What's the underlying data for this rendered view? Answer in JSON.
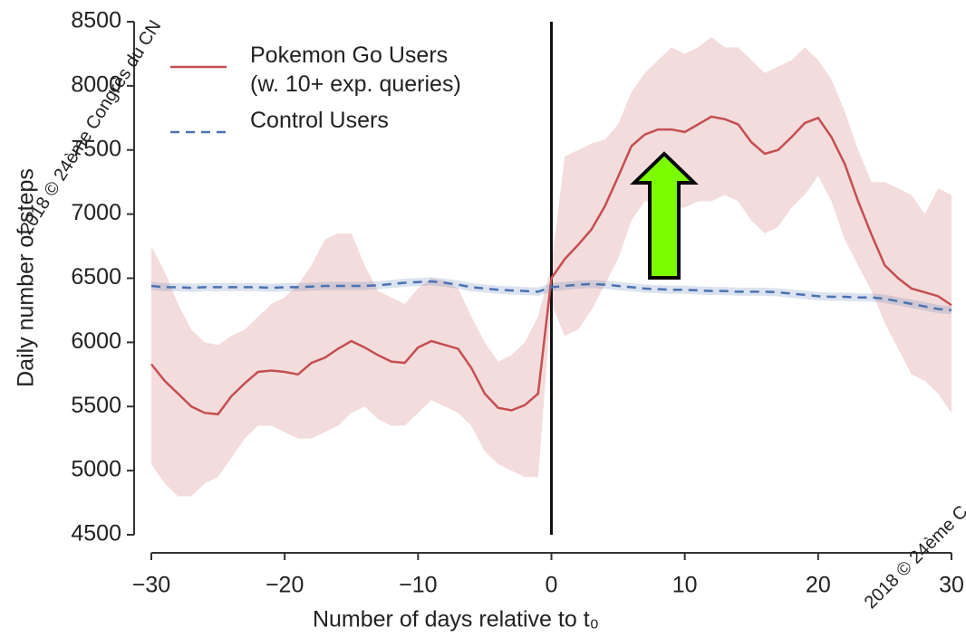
{
  "chart_data": {
    "type": "line",
    "xlabel": "Number of days relative to t₀",
    "ylabel": "Daily number of steps",
    "x": [
      -30,
      -29,
      -28,
      -27,
      -26,
      -25,
      -24,
      -23,
      -22,
      -21,
      -20,
      -19,
      -18,
      -17,
      -16,
      -15,
      -14,
      -13,
      -12,
      -11,
      -10,
      -9,
      -8,
      -7,
      -6,
      -5,
      -4,
      -3,
      -2,
      -1,
      0,
      1,
      2,
      3,
      4,
      5,
      6,
      7,
      8,
      9,
      10,
      11,
      12,
      13,
      14,
      15,
      16,
      17,
      18,
      19,
      20,
      21,
      22,
      23,
      24,
      25,
      26,
      27,
      28,
      29,
      30
    ],
    "series": [
      {
        "name": "Pokemon Go Users\n(w. 10+ exp. queries)",
        "color": "#c44e52",
        "values": [
          5830,
          5700,
          5600,
          5500,
          5450,
          5440,
          5580,
          5680,
          5770,
          5780,
          5770,
          5750,
          5840,
          5880,
          5950,
          6010,
          5960,
          5900,
          5850,
          5840,
          5960,
          6010,
          5980,
          5950,
          5800,
          5600,
          5490,
          5470,
          5510,
          5600,
          6500,
          6650,
          6760,
          6880,
          7060,
          7290,
          7530,
          7620,
          7660,
          7660,
          7640,
          7700,
          7760,
          7740,
          7700,
          7560,
          7470,
          7500,
          7600,
          7710,
          7750,
          7600,
          7390,
          7100,
          6840,
          6600,
          6500,
          6420,
          6390,
          6360,
          6290
        ],
        "upper": [
          6750,
          6550,
          6300,
          6100,
          6000,
          5980,
          6050,
          6100,
          6200,
          6300,
          6350,
          6450,
          6600,
          6800,
          6850,
          6850,
          6600,
          6400,
          6350,
          6300,
          6420,
          6500,
          6480,
          6420,
          6200,
          6000,
          5850,
          5900,
          6000,
          6200,
          6600,
          7450,
          7500,
          7550,
          7580,
          7700,
          7950,
          8100,
          8200,
          8300,
          8250,
          8300,
          8380,
          8300,
          8300,
          8200,
          8100,
          8150,
          8200,
          8300,
          8200,
          8050,
          7800,
          7500,
          7250,
          7250,
          7200,
          7150,
          7000,
          7200,
          7150
        ],
        "lower": [
          5050,
          4900,
          4800,
          4800,
          4900,
          4950,
          5100,
          5250,
          5350,
          5350,
          5300,
          5250,
          5250,
          5300,
          5350,
          5450,
          5500,
          5400,
          5350,
          5350,
          5450,
          5550,
          5500,
          5450,
          5350,
          5150,
          5050,
          5000,
          4950,
          4950,
          6300,
          6050,
          6100,
          6250,
          6450,
          6650,
          6950,
          7100,
          7100,
          7050,
          7050,
          7100,
          7100,
          7150,
          7100,
          6950,
          6850,
          6900,
          7050,
          7150,
          7300,
          7100,
          6800,
          6600,
          6400,
          6150,
          5950,
          5750,
          5700,
          5600,
          5450
        ]
      },
      {
        "name": "Control Users",
        "color": "#4c72b0",
        "dashed": true,
        "values": [
          6440,
          6430,
          6430,
          6425,
          6430,
          6430,
          6430,
          6430,
          6430,
          6425,
          6430,
          6430,
          6435,
          6440,
          6440,
          6440,
          6440,
          6445,
          6455,
          6465,
          6470,
          6475,
          6465,
          6450,
          6430,
          6420,
          6410,
          6405,
          6400,
          6395,
          6430,
          6440,
          6450,
          6455,
          6450,
          6440,
          6430,
          6420,
          6415,
          6410,
          6410,
          6405,
          6400,
          6400,
          6395,
          6395,
          6395,
          6390,
          6380,
          6370,
          6360,
          6355,
          6355,
          6350,
          6350,
          6340,
          6320,
          6300,
          6280,
          6260,
          6250
        ]
      }
    ],
    "vline": 0,
    "xlim": [
      -30,
      30
    ],
    "xticks": [
      {
        "value": -30,
        "label": "−30"
      },
      {
        "value": -20,
        "label": "−20"
      },
      {
        "value": -10,
        "label": "−10"
      },
      0,
      10,
      20,
      30
    ],
    "ylim": [
      4500,
      8500
    ],
    "yticks": [
      4500,
      5000,
      5500,
      6000,
      6500,
      7000,
      7500,
      8000,
      8500
    ],
    "legend": "upper left",
    "watermarks": [
      "2018 © 24ème Congrès du CN",
      "2018 © 24ème C"
    ]
  }
}
